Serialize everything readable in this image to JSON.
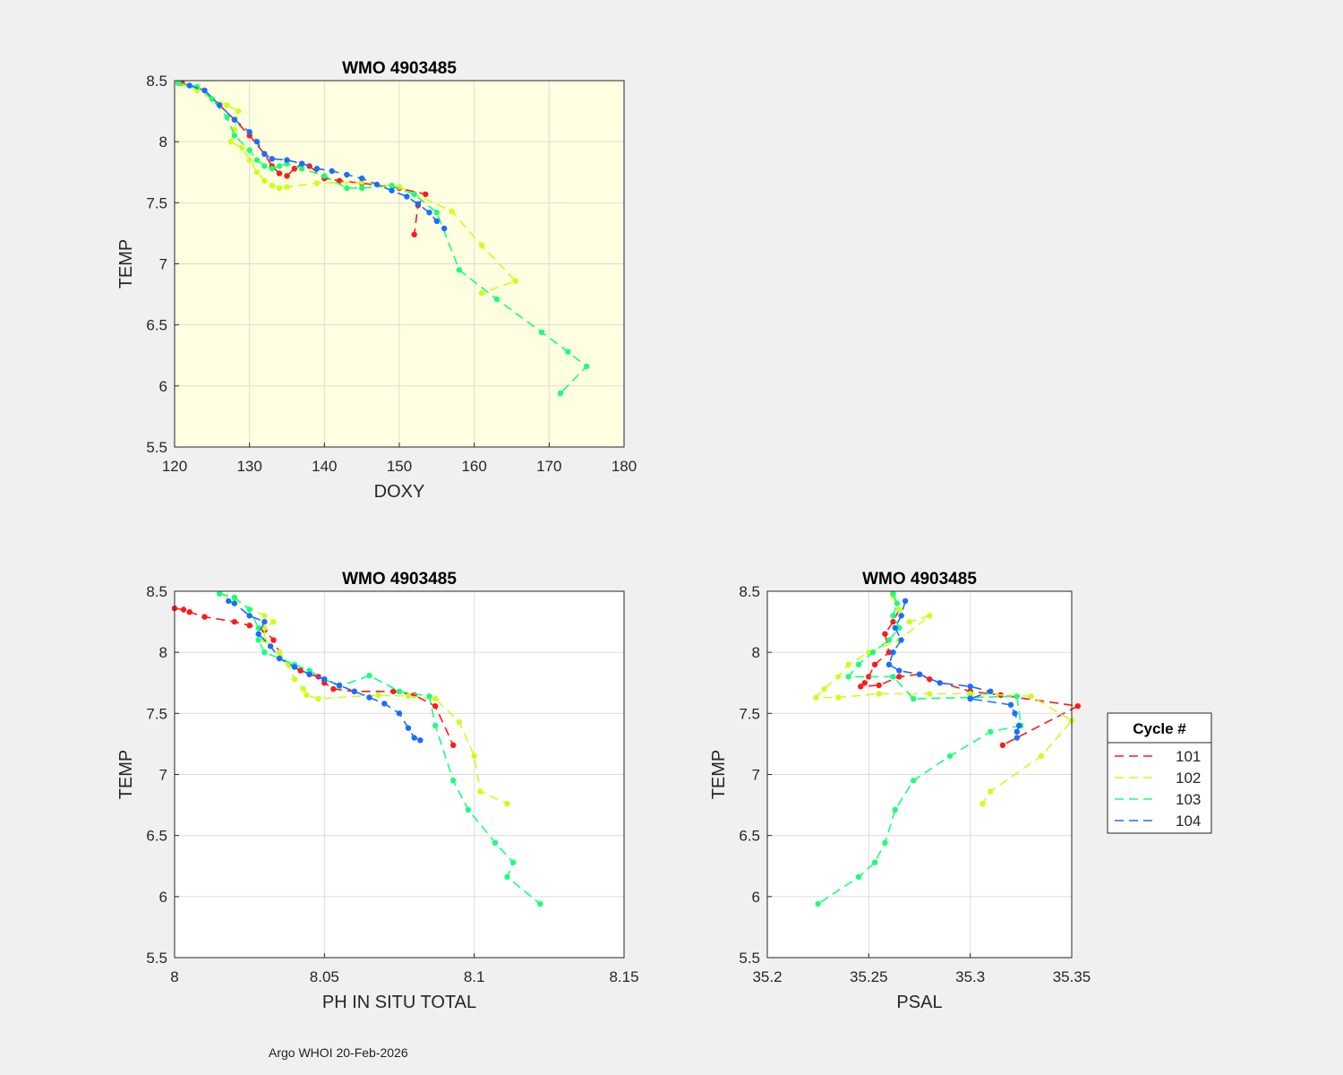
{
  "footer": "Argo WHOI 20-Feb-2026",
  "legend": {
    "title": "Cycle #",
    "entries": [
      {
        "label": "101",
        "color": "#ff1a1a"
      },
      {
        "label": "102",
        "color": "#ccff1a"
      },
      {
        "label": "103",
        "color": "#1aff7a"
      },
      {
        "label": "104",
        "color": "#1a6eff"
      }
    ]
  },
  "chart_data": [
    {
      "type": "line",
      "title": "WMO 4903485",
      "xlabel": "DOXY",
      "ylabel": "TEMP",
      "xlim": [
        120,
        180
      ],
      "ylim": [
        5.5,
        8.5
      ],
      "xticks": [
        "120",
        "130",
        "140",
        "150",
        "160",
        "170",
        "180"
      ],
      "yticks": [
        "5.5",
        "6",
        "6.5",
        "7",
        "7.5",
        "8",
        "8.5"
      ],
      "background": "#fefee0",
      "grid": true,
      "series": [
        {
          "name": "101",
          "color": "#ff1a1a",
          "points": [
            [
              121,
              8.48
            ],
            [
              124,
              8.42
            ],
            [
              126,
              8.3
            ],
            [
              128,
              8.18
            ],
            [
              130,
              8.05
            ],
            [
              132,
              7.9
            ],
            [
              133,
              7.8
            ],
            [
              134,
              7.74
            ],
            [
              135,
              7.72
            ],
            [
              136,
              7.78
            ],
            [
              137,
              7.82
            ],
            [
              138,
              7.8
            ],
            [
              140,
              7.7
            ],
            [
              142,
              7.68
            ],
            [
              145,
              7.66
            ],
            [
              150,
              7.62
            ],
            [
              153.5,
              7.57
            ],
            [
              152.5,
              7.48
            ],
            [
              152,
              7.24
            ]
          ]
        },
        {
          "name": "102",
          "color": "#ccff1a",
          "points": [
            [
              120.5,
              8.48
            ],
            [
              123,
              8.42
            ],
            [
              125,
              8.35
            ],
            [
              127,
              8.3
            ],
            [
              128.5,
              8.25
            ],
            [
              128,
              8.1
            ],
            [
              127.5,
              8.0
            ],
            [
              129,
              7.95
            ],
            [
              130,
              7.85
            ],
            [
              131,
              7.75
            ],
            [
              132,
              7.68
            ],
            [
              133,
              7.64
            ],
            [
              134,
              7.62
            ],
            [
              135,
              7.63
            ],
            [
              139,
              7.66
            ],
            [
              145,
              7.67
            ],
            [
              150,
              7.63
            ],
            [
              157,
              7.43
            ],
            [
              161,
              7.15
            ],
            [
              165.5,
              6.86
            ],
            [
              161,
              6.76
            ]
          ]
        },
        {
          "name": "103",
          "color": "#1aff7a",
          "points": [
            [
              120.5,
              8.48
            ],
            [
              123,
              8.45
            ],
            [
              125,
              8.35
            ],
            [
              127,
              8.2
            ],
            [
              128,
              8.05
            ],
            [
              130,
              7.93
            ],
            [
              131,
              7.85
            ],
            [
              132,
              7.8
            ],
            [
              133,
              7.78
            ],
            [
              134,
              7.8
            ],
            [
              135,
              7.82
            ],
            [
              137,
              7.78
            ],
            [
              140,
              7.72
            ],
            [
              143,
              7.62
            ],
            [
              145,
              7.62
            ],
            [
              149,
              7.64
            ],
            [
              152,
              7.57
            ],
            [
              155,
              7.42
            ],
            [
              158,
              6.95
            ],
            [
              163,
              6.71
            ],
            [
              169,
              6.44
            ],
            [
              172.5,
              6.28
            ],
            [
              175,
              6.16
            ],
            [
              171.5,
              5.94
            ]
          ]
        },
        {
          "name": "104",
          "color": "#1a6eff",
          "points": [
            [
              122,
              8.46
            ],
            [
              124,
              8.42
            ],
            [
              126,
              8.3
            ],
            [
              128,
              8.18
            ],
            [
              130,
              8.08
            ],
            [
              131,
              8.0
            ],
            [
              132,
              7.9
            ],
            [
              133,
              7.86
            ],
            [
              135,
              7.85
            ],
            [
              137,
              7.82
            ],
            [
              139,
              7.78
            ],
            [
              141,
              7.76
            ],
            [
              143,
              7.73
            ],
            [
              145,
              7.7
            ],
            [
              147,
              7.65
            ],
            [
              149,
              7.6
            ],
            [
              151,
              7.55
            ],
            [
              152.5,
              7.49
            ],
            [
              154,
              7.42
            ],
            [
              155,
              7.35
            ],
            [
              156,
              7.29
            ]
          ]
        }
      ]
    },
    {
      "type": "line",
      "title": "WMO 4903485",
      "xlabel": "PH IN SITU TOTAL",
      "ylabel": "TEMP",
      "xlim": [
        8,
        8.15
      ],
      "ylim": [
        5.5,
        8.5
      ],
      "xticks": [
        "8",
        "8.05",
        "8.1",
        "8.15"
      ],
      "yticks": [
        "5.5",
        "6",
        "6.5",
        "7",
        "7.5",
        "8",
        "8.5"
      ],
      "background": "#ffffff",
      "grid": true,
      "series": [
        {
          "name": "101",
          "color": "#ff1a1a",
          "points": [
            [
              8.0,
              8.36
            ],
            [
              8.003,
              8.35
            ],
            [
              8.005,
              8.33
            ],
            [
              8.01,
              8.29
            ],
            [
              8.02,
              8.25
            ],
            [
              8.025,
              8.22
            ],
            [
              8.03,
              8.18
            ],
            [
              8.033,
              8.1
            ],
            [
              8.035,
              8.0
            ],
            [
              8.038,
              7.9
            ],
            [
              8.042,
              7.85
            ],
            [
              8.045,
              7.82
            ],
            [
              8.048,
              7.8
            ],
            [
              8.05,
              7.75
            ],
            [
              8.053,
              7.7
            ],
            [
              8.06,
              7.68
            ],
            [
              8.073,
              7.68
            ],
            [
              8.08,
              7.65
            ],
            [
              8.087,
              7.56
            ],
            [
              8.093,
              7.24
            ]
          ]
        },
        {
          "name": "102",
          "color": "#ccff1a",
          "points": [
            [
              8.015,
              8.48
            ],
            [
              8.02,
              8.43
            ],
            [
              8.03,
              8.3
            ],
            [
              8.033,
              8.25
            ],
            [
              8.03,
              8.2
            ],
            [
              8.03,
              8.1
            ],
            [
              8.035,
              8.0
            ],
            [
              8.038,
              7.9
            ],
            [
              8.04,
              7.78
            ],
            [
              8.043,
              7.7
            ],
            [
              8.044,
              7.65
            ],
            [
              8.048,
              7.62
            ],
            [
              8.068,
              7.65
            ],
            [
              8.078,
              7.64
            ],
            [
              8.087,
              7.62
            ],
            [
              8.095,
              7.43
            ],
            [
              8.1,
              7.15
            ],
            [
              8.102,
              6.86
            ],
            [
              8.111,
              6.76
            ]
          ]
        },
        {
          "name": "103",
          "color": "#1aff7a",
          "points": [
            [
              8.015,
              8.48
            ],
            [
              8.02,
              8.45
            ],
            [
              8.025,
              8.35
            ],
            [
              8.028,
              8.2
            ],
            [
              8.028,
              8.1
            ],
            [
              8.03,
              8.0
            ],
            [
              8.035,
              7.95
            ],
            [
              8.04,
              7.9
            ],
            [
              8.045,
              7.85
            ],
            [
              8.05,
              7.78
            ],
            [
              8.055,
              7.72
            ],
            [
              8.065,
              7.81
            ],
            [
              8.075,
              7.68
            ],
            [
              8.085,
              7.64
            ],
            [
              8.087,
              7.4
            ],
            [
              8.093,
              6.95
            ],
            [
              8.098,
              6.71
            ],
            [
              8.107,
              6.44
            ],
            [
              8.113,
              6.28
            ],
            [
              8.111,
              6.16
            ],
            [
              8.122,
              5.94
            ]
          ]
        },
        {
          "name": "104",
          "color": "#1a6eff",
          "points": [
            [
              8.018,
              8.42
            ],
            [
              8.02,
              8.4
            ],
            [
              8.025,
              8.3
            ],
            [
              8.03,
              8.25
            ],
            [
              8.028,
              8.15
            ],
            [
              8.032,
              8.05
            ],
            [
              8.035,
              7.95
            ],
            [
              8.04,
              7.88
            ],
            [
              8.045,
              7.82
            ],
            [
              8.05,
              7.78
            ],
            [
              8.055,
              7.73
            ],
            [
              8.06,
              7.68
            ],
            [
              8.065,
              7.63
            ],
            [
              8.07,
              7.58
            ],
            [
              8.075,
              7.5
            ],
            [
              8.078,
              7.38
            ],
            [
              8.08,
              7.3
            ],
            [
              8.082,
              7.28
            ]
          ]
        }
      ]
    },
    {
      "type": "line",
      "title": "WMO 4903485",
      "xlabel": "PSAL",
      "ylabel": "TEMP",
      "xlim": [
        35.2,
        35.35
      ],
      "ylim": [
        5.5,
        8.5
      ],
      "xticks": [
        "35.2",
        "35.25",
        "35.3",
        "35.35"
      ],
      "yticks": [
        "5.5",
        "6",
        "6.5",
        "7",
        "7.5",
        "8",
        "8.5"
      ],
      "background": "#ffffff",
      "grid": true,
      "series": [
        {
          "name": "101",
          "color": "#ff1a1a",
          "points": [
            [
              35.265,
              8.35
            ],
            [
              35.262,
              8.25
            ],
            [
              35.258,
              8.15
            ],
            [
              35.26,
              8.0
            ],
            [
              35.253,
              7.9
            ],
            [
              35.25,
              7.8
            ],
            [
              35.248,
              7.75
            ],
            [
              35.246,
              7.72
            ],
            [
              35.255,
              7.73
            ],
            [
              35.265,
              7.8
            ],
            [
              35.275,
              7.82
            ],
            [
              35.28,
              7.78
            ],
            [
              35.3,
              7.68
            ],
            [
              35.315,
              7.65
            ],
            [
              35.353,
              7.56
            ],
            [
              35.316,
              7.24
            ]
          ]
        },
        {
          "name": "102",
          "color": "#ccff1a",
          "points": [
            [
              35.262,
              8.46
            ],
            [
              35.265,
              8.35
            ],
            [
              35.27,
              8.25
            ],
            [
              35.28,
              8.3
            ],
            [
              35.265,
              8.1
            ],
            [
              35.25,
              8.0
            ],
            [
              35.24,
              7.9
            ],
            [
              35.235,
              7.8
            ],
            [
              35.228,
              7.7
            ],
            [
              35.224,
              7.63
            ],
            [
              35.235,
              7.63
            ],
            [
              35.255,
              7.66
            ],
            [
              35.28,
              7.66
            ],
            [
              35.3,
              7.66
            ],
            [
              35.33,
              7.64
            ],
            [
              35.35,
              7.44
            ],
            [
              35.335,
              7.15
            ],
            [
              35.31,
              6.86
            ],
            [
              35.306,
              6.76
            ]
          ]
        },
        {
          "name": "103",
          "color": "#1aff7a",
          "points": [
            [
              35.262,
              8.48
            ],
            [
              35.264,
              8.4
            ],
            [
              35.262,
              8.3
            ],
            [
              35.265,
              8.2
            ],
            [
              35.26,
              8.1
            ],
            [
              35.252,
              8.0
            ],
            [
              35.245,
              7.9
            ],
            [
              35.24,
              7.8
            ],
            [
              35.262,
              7.8
            ],
            [
              35.272,
              7.62
            ],
            [
              35.3,
              7.63
            ],
            [
              35.323,
              7.64
            ],
            [
              35.325,
              7.4
            ],
            [
              35.31,
              7.35
            ],
            [
              35.29,
              7.15
            ],
            [
              35.272,
              6.95
            ],
            [
              35.263,
              6.71
            ],
            [
              35.258,
              6.44
            ],
            [
              35.253,
              6.28
            ],
            [
              35.245,
              6.16
            ],
            [
              35.225,
              5.94
            ]
          ]
        },
        {
          "name": "104",
          "color": "#1a6eff",
          "points": [
            [
              35.268,
              8.42
            ],
            [
              35.266,
              8.3
            ],
            [
              35.263,
              8.2
            ],
            [
              35.266,
              8.1
            ],
            [
              35.262,
              8.0
            ],
            [
              35.26,
              7.9
            ],
            [
              35.265,
              7.85
            ],
            [
              35.275,
              7.82
            ],
            [
              35.285,
              7.75
            ],
            [
              35.3,
              7.72
            ],
            [
              35.31,
              7.68
            ],
            [
              35.3,
              7.62
            ],
            [
              35.32,
              7.57
            ],
            [
              35.322,
              7.5
            ],
            [
              35.324,
              7.4
            ],
            [
              35.323,
              7.35
            ],
            [
              35.323,
              7.3
            ]
          ]
        }
      ]
    }
  ]
}
